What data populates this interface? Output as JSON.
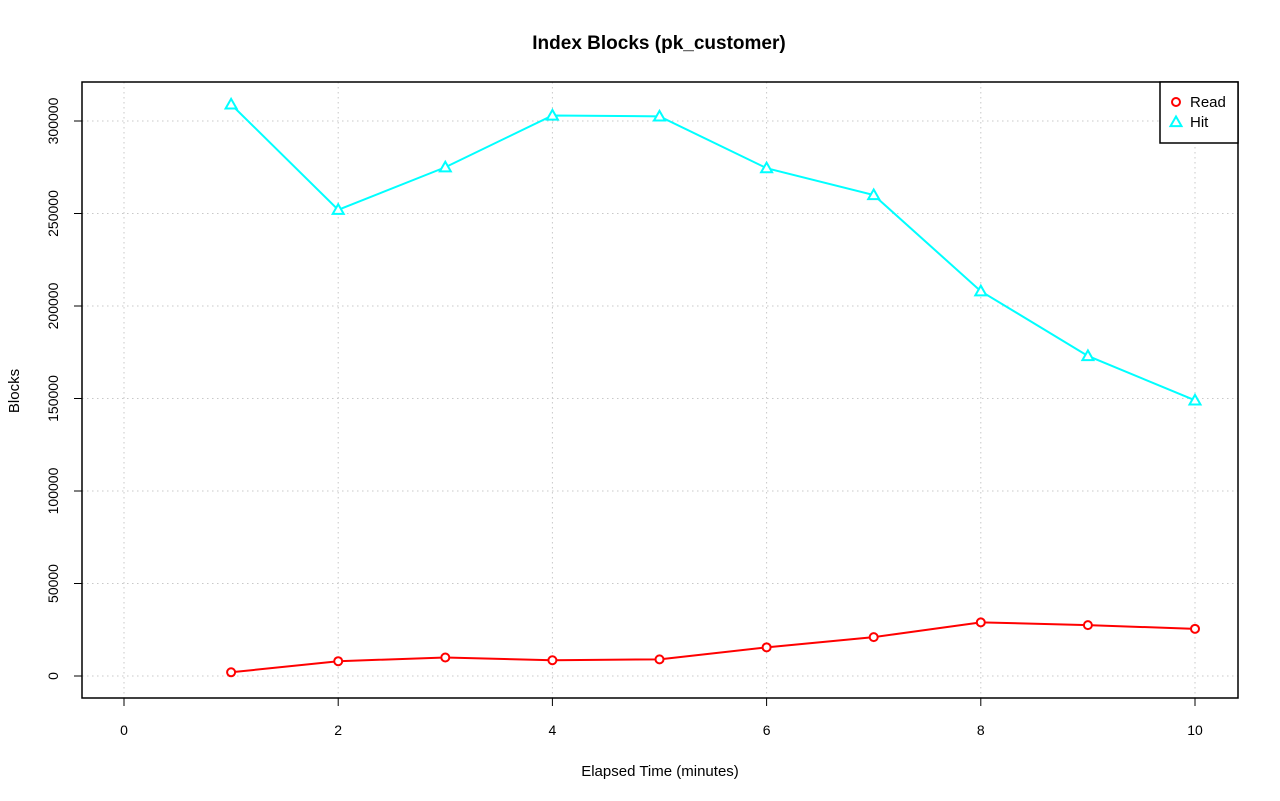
{
  "chart_data": {
    "type": "line",
    "title": "Index Blocks (pk_customer)",
    "xlabel": "Elapsed Time (minutes)",
    "ylabel": "Blocks",
    "xlim": [
      0,
      10
    ],
    "ylim": [
      0,
      300000
    ],
    "x_ticks": [
      "0",
      "2",
      "4",
      "6",
      "8",
      "10"
    ],
    "y_ticks": [
      "0",
      "50000",
      "100000",
      "150000",
      "200000",
      "250000",
      "300000"
    ],
    "grid": true,
    "legend_position": "top-right",
    "x": [
      1,
      2,
      3,
      4,
      5,
      6,
      7,
      8,
      9,
      10
    ],
    "series": [
      {
        "name": "Read",
        "color": "#ff0000",
        "marker": "circle",
        "values": [
          2000,
          8000,
          10000,
          8500,
          9000,
          15500,
          21000,
          29000,
          27500,
          25500
        ]
      },
      {
        "name": "Hit",
        "color": "#00ffff",
        "marker": "triangle",
        "values": [
          309000,
          252000,
          275000,
          303000,
          302500,
          274500,
          260000,
          208000,
          173000,
          149000
        ]
      }
    ]
  }
}
